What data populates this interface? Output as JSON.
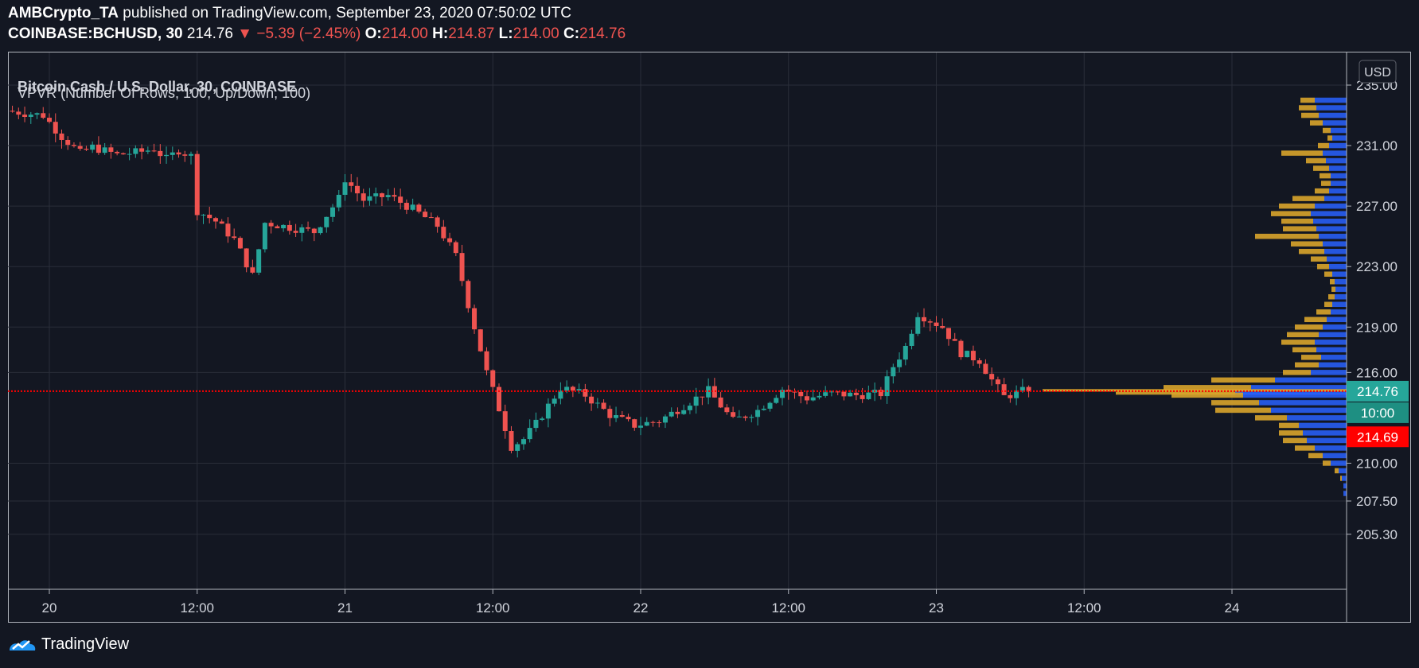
{
  "header": {
    "publisher": "AMBCrypto_TA",
    "published_text": "published on TradingView.com, September 23, 2020 07:50:02 UTC",
    "symbol": "COINBASE:BCHUSD, 30",
    "last": "214.76",
    "arrow": "▼",
    "change": "−5.39 (−2.45%)",
    "o_label": "O:",
    "o_value": "214.00",
    "h_label": "H:",
    "h_value": "214.87",
    "l_label": "L:",
    "l_value": "214.00",
    "c_label": "C:",
    "c_value": "214.76"
  },
  "legend": {
    "title": "Bitcoin Cash / U.S. Dollar, 30, COINBASE",
    "indicator": "VPVR (Number Of Rows, 100, Up/Down, 100)"
  },
  "price_axis": {
    "currency": "USD",
    "labels": [
      "235.00",
      "231.00",
      "227.00",
      "223.00",
      "219.00",
      "216.00",
      "210.00",
      "207.50",
      "205.30"
    ],
    "last_price_label": "214.76",
    "countdown_label": "10:00",
    "crosshair_label": "214.69"
  },
  "time_axis": {
    "labels": [
      "20",
      "12:00",
      "21",
      "12:00",
      "22",
      "12:00",
      "23",
      "12:00",
      "24"
    ]
  },
  "footer": {
    "brand": "TradingView"
  },
  "colors": {
    "background": "#131722",
    "up": "#26a69a",
    "down": "#ef5350",
    "vpvr_up": "#2962ff",
    "vpvr_down": "#d9a42b",
    "price_line": "#ff0000"
  },
  "chart_data": {
    "type": "candlestick",
    "title": "Bitcoin Cash / U.S. Dollar, 30, COINBASE",
    "ylim": [
      205.3,
      236.2
    ],
    "x_range": [
      "2020-09-19T22:00",
      "2020-09-24T18:00"
    ],
    "last_price": 214.76,
    "crosshair_price": 214.69,
    "candles_anchor": [
      [
        "2020-09-19T21:00",
        233.3
      ],
      [
        "2020-09-20T00:00",
        233.0
      ],
      [
        "2020-09-20T01:30",
        231.6
      ],
      [
        "2020-09-20T03:00",
        230.5
      ],
      [
        "2020-09-20T04:00",
        230.9
      ],
      [
        "2020-09-20T06:00",
        230.4
      ],
      [
        "2020-09-20T08:00",
        230.6
      ],
      [
        "2020-09-20T09:00",
        230.8
      ],
      [
        "2020-09-20T10:00",
        230.1
      ],
      [
        "2020-09-20T11:00",
        230.7
      ],
      [
        "2020-09-20T12:00",
        230.3
      ],
      [
        "2020-09-20T12:30",
        226.7
      ],
      [
        "2020-09-20T14:00",
        226.0
      ],
      [
        "2020-09-20T15:30",
        224.8
      ],
      [
        "2020-09-20T17:00",
        222.4
      ],
      [
        "2020-09-20T18:00",
        225.9
      ],
      [
        "2020-09-20T20:00",
        225.6
      ],
      [
        "2020-09-20T22:00",
        225.3
      ],
      [
        "2020-09-21T00:00",
        227.5
      ],
      [
        "2020-09-21T00:30",
        228.8
      ],
      [
        "2020-09-21T02:00",
        227.4
      ],
      [
        "2020-09-21T04:00",
        227.7
      ],
      [
        "2020-09-21T06:00",
        226.8
      ],
      [
        "2020-09-21T08:00",
        225.7
      ],
      [
        "2020-09-21T09:30",
        223.7
      ],
      [
        "2020-09-21T10:30",
        220.5
      ],
      [
        "2020-09-21T12:00",
        216.0
      ],
      [
        "2020-09-21T13:00",
        213.6
      ],
      [
        "2020-09-21T14:00",
        211.1
      ],
      [
        "2020-09-21T15:00",
        211.6
      ],
      [
        "2020-09-21T16:00",
        212.6
      ],
      [
        "2020-09-21T18:00",
        215.0
      ],
      [
        "2020-09-21T20:00",
        214.5
      ],
      [
        "2020-09-21T22:00",
        213.2
      ],
      [
        "2020-09-22T00:00",
        212.5
      ],
      [
        "2020-09-22T02:00",
        212.8
      ],
      [
        "2020-09-22T04:00",
        213.8
      ],
      [
        "2020-09-22T06:00",
        214.8
      ],
      [
        "2020-09-22T08:00",
        212.8
      ],
      [
        "2020-09-22T10:00",
        213.5
      ],
      [
        "2020-09-22T12:00",
        214.9
      ],
      [
        "2020-09-22T14:00",
        214.3
      ],
      [
        "2020-09-22T16:00",
        214.6
      ],
      [
        "2020-09-22T18:00",
        214.5
      ],
      [
        "2020-09-22T20:00",
        214.6
      ],
      [
        "2020-09-22T21:00",
        216.4
      ],
      [
        "2020-09-22T22:00",
        217.7
      ],
      [
        "2020-09-22T23:00",
        219.9
      ],
      [
        "2020-09-23T01:00",
        219.0
      ],
      [
        "2020-09-23T02:30",
        217.3
      ],
      [
        "2020-09-23T04:00",
        216.8
      ],
      [
        "2020-09-23T05:00",
        215.5
      ],
      [
        "2020-09-23T06:00",
        214.4
      ],
      [
        "2020-09-23T07:30",
        214.76
      ]
    ],
    "volume_profile": [
      [
        234.0,
        40,
        18
      ],
      [
        233.5,
        38,
        22
      ],
      [
        233.0,
        35,
        22
      ],
      [
        232.5,
        30,
        16
      ],
      [
        232.0,
        20,
        10
      ],
      [
        231.5,
        18,
        6
      ],
      [
        231.0,
        22,
        14
      ],
      [
        230.5,
        30,
        52
      ],
      [
        230.0,
        26,
        25
      ],
      [
        229.5,
        22,
        20
      ],
      [
        229.0,
        20,
        14
      ],
      [
        228.5,
        20,
        12
      ],
      [
        228.0,
        22,
        18
      ],
      [
        227.5,
        28,
        40
      ],
      [
        227.0,
        40,
        45
      ],
      [
        226.5,
        45,
        50
      ],
      [
        226.0,
        42,
        40
      ],
      [
        225.5,
        38,
        42
      ],
      [
        225.0,
        35,
        80
      ],
      [
        224.5,
        30,
        40
      ],
      [
        224.0,
        28,
        32
      ],
      [
        223.5,
        25,
        20
      ],
      [
        223.0,
        22,
        15
      ],
      [
        222.5,
        18,
        10
      ],
      [
        222.0,
        15,
        6
      ],
      [
        221.5,
        14,
        5
      ],
      [
        221.0,
        15,
        8
      ],
      [
        220.5,
        18,
        10
      ],
      [
        220.0,
        20,
        18
      ],
      [
        219.5,
        25,
        28
      ],
      [
        219.0,
        30,
        35
      ],
      [
        218.5,
        35,
        40
      ],
      [
        218.0,
        40,
        42
      ],
      [
        217.5,
        38,
        30
      ],
      [
        217.0,
        32,
        25
      ],
      [
        216.5,
        35,
        30
      ],
      [
        216.0,
        45,
        35
      ],
      [
        215.5,
        90,
        80
      ],
      [
        215.0,
        120,
        110
      ],
      [
        214.7,
        140,
        150
      ],
      [
        214.5,
        130,
        90
      ],
      [
        214.0,
        110,
        60
      ],
      [
        213.5,
        95,
        70
      ],
      [
        213.0,
        75,
        40
      ],
      [
        212.5,
        60,
        25
      ],
      [
        212.0,
        55,
        30
      ],
      [
        211.5,
        50,
        30
      ],
      [
        211.0,
        40,
        25
      ],
      [
        210.5,
        30,
        18
      ],
      [
        210.0,
        20,
        10
      ],
      [
        209.5,
        10,
        5
      ],
      [
        209.0,
        6,
        2
      ],
      [
        208.5,
        4,
        0
      ],
      [
        208.0,
        4,
        0
      ]
    ]
  }
}
